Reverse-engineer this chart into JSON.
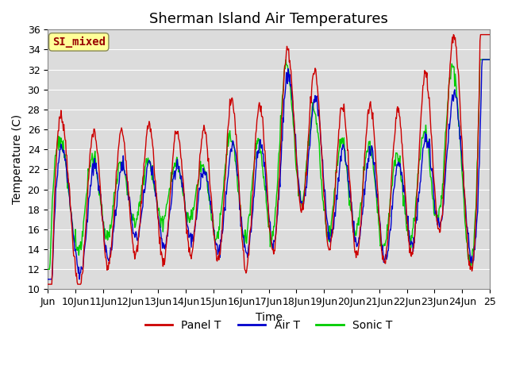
{
  "title": "Sherman Island Air Temperatures",
  "xlabel": "Time",
  "ylabel": "Temperature (C)",
  "ylim": [
    10,
    36
  ],
  "yticks": [
    10,
    12,
    14,
    16,
    18,
    20,
    22,
    24,
    26,
    28,
    30,
    32,
    34,
    36
  ],
  "xlim_start": 9.0,
  "xlim_end": 25.0,
  "xtick_positions": [
    9,
    10,
    11,
    12,
    13,
    14,
    15,
    16,
    17,
    18,
    19,
    20,
    21,
    22,
    23,
    24,
    25
  ],
  "xtick_labels": [
    "Jun",
    "10Jun",
    "11Jun",
    "12Jun",
    "13Jun",
    "14Jun",
    "15Jun",
    "16Jun",
    "17Jun",
    "18Jun",
    "19Jun",
    "20Jun",
    "21Jun",
    "22Jun",
    "23Jun",
    "24Jun",
    "25"
  ],
  "panel_color": "#cc0000",
  "air_color": "#0000cc",
  "sonic_color": "#00cc00",
  "background_color": "#dcdcdc",
  "annotation_text": "SI_mixed",
  "annotation_color": "#990000",
  "annotation_bg": "#ffff99",
  "title_fontsize": 13,
  "axis_fontsize": 10,
  "tick_fontsize": 9,
  "legend_fontsize": 10
}
